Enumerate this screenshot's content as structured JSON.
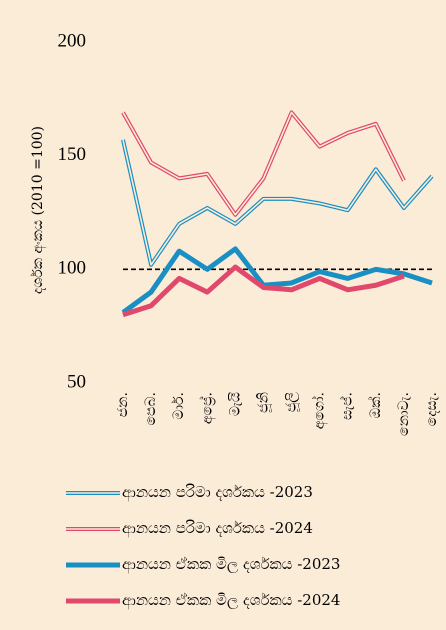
{
  "chart_data": {
    "type": "line",
    "y_label": "දර්ශක අංකය (2010 =100)",
    "categories": [
      "ජන.",
      "පෙබ.",
      "මාර්.",
      "අප්‍රේ.",
      "මැයි",
      "ජූනි",
      "ජූලි",
      "අගෝ.",
      "සැප්.",
      "ඔක්.",
      "නොවැ.",
      "දෙසැ."
    ],
    "series": [
      {
        "name": "ආනයන පරිමා දර්ශකය -2023",
        "color": "#1a8fc4",
        "style": "double",
        "values": [
          157,
          102,
          120,
          127,
          120,
          131,
          131,
          129,
          126,
          144,
          127,
          141
        ]
      },
      {
        "name": "ආනයන පරිමා දර්ශකය -2024",
        "color": "#e0496b",
        "style": "double",
        "values": [
          169,
          147,
          140,
          142,
          124,
          140,
          169,
          154,
          160,
          164,
          139,
          null
        ]
      },
      {
        "name": "ආනයන ඒකක මිල දර්ශකය -2023",
        "color": "#1a8fc4",
        "style": "solid",
        "values": [
          81,
          90,
          108,
          100,
          109,
          93,
          94,
          99,
          96,
          100,
          98,
          94
        ]
      },
      {
        "name": "ආනයන ඒකක මිල දර්ශකය -2024",
        "color": "#e0496b",
        "style": "solid",
        "values": [
          80,
          84,
          96,
          90,
          101,
          92,
          91,
          96,
          91,
          93,
          97,
          null
        ]
      }
    ],
    "reference_line": 100,
    "ylim": [
      50,
      200
    ],
    "yticks": [
      50,
      100,
      150,
      200
    ],
    "grid": false
  }
}
